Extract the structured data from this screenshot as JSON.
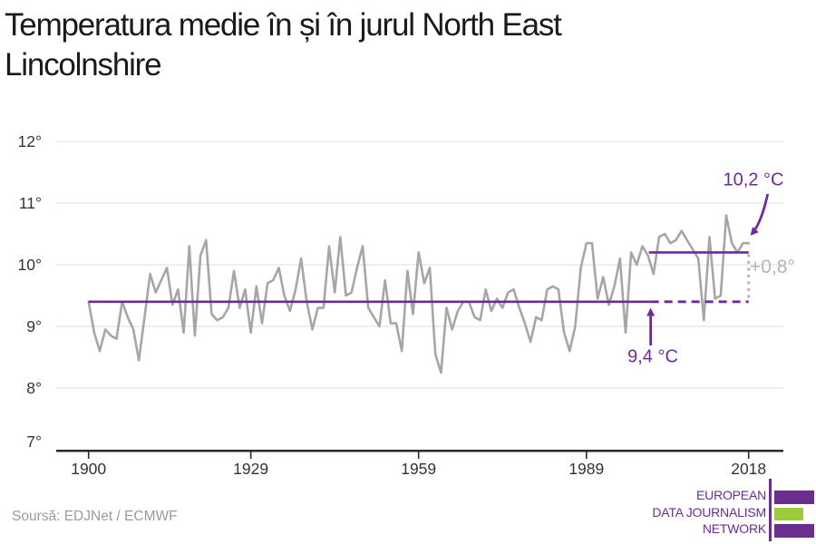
{
  "title": "Temperatura medie în și în jurul North East Lincolnshire",
  "source": "Soursă: EDJNet / ECMWF",
  "annotations": {
    "recent_avg_label": "10,2 °C",
    "past_avg_label": "9,4 °C",
    "delta_label": "+0,8°"
  },
  "logo": {
    "line1": "EUROPEAN",
    "line2": "DATA JOURNALISM",
    "line3": "NETWORK"
  },
  "colors": {
    "purple": "#6e2a9d",
    "logo_purple": "#6b2e8f",
    "logo_green": "#9dcb3c",
    "series_gray": "#a6a6a6",
    "grid": "#e3e3e3",
    "axis": "#2a2a2a",
    "tick_text": "#333333",
    "delta_gray": "#b4b4b4",
    "source_gray": "#9b9b9b",
    "title_text": "#1a1a1a"
  },
  "chart_data": {
    "type": "line",
    "title": "Temperatura medie în și în jurul North East Lincolnshire",
    "xlabel": "",
    "ylabel": "",
    "xlim": [
      1900,
      2018
    ],
    "ylim": [
      7,
      12
    ],
    "grid": "horizontal",
    "legend": "none",
    "x_ticks": [
      {
        "value": 1900,
        "label": "1900"
      },
      {
        "value": 1929,
        "label": "1929"
      },
      {
        "value": 1959,
        "label": "1959"
      },
      {
        "value": 1989,
        "label": "1989"
      },
      {
        "value": 2018,
        "label": "2018"
      }
    ],
    "y_ticks": [
      {
        "value": 12,
        "label": "12°"
      },
      {
        "value": 11,
        "label": "11°"
      },
      {
        "value": 10,
        "label": "10°"
      },
      {
        "value": 9,
        "label": "9°"
      },
      {
        "value": 8,
        "label": "8°"
      },
      {
        "value": 7,
        "label": "7°"
      }
    ],
    "baseline_1900_1999": 9.4,
    "average_2000_2018": 10.2,
    "difference": 0.8,
    "baseline_period": [
      1900,
      2000
    ],
    "recent_period": [
      2000,
      2018
    ],
    "years": [
      1900,
      1901,
      1902,
      1903,
      1904,
      1905,
      1906,
      1907,
      1908,
      1909,
      1910,
      1911,
      1912,
      1913,
      1914,
      1915,
      1916,
      1917,
      1918,
      1919,
      1920,
      1921,
      1922,
      1923,
      1924,
      1925,
      1926,
      1927,
      1928,
      1929,
      1930,
      1931,
      1932,
      1933,
      1934,
      1935,
      1936,
      1937,
      1938,
      1939,
      1940,
      1941,
      1942,
      1943,
      1944,
      1945,
      1946,
      1947,
      1948,
      1949,
      1950,
      1951,
      1952,
      1953,
      1954,
      1955,
      1956,
      1957,
      1958,
      1959,
      1960,
      1961,
      1962,
      1963,
      1964,
      1965,
      1966,
      1967,
      1968,
      1969,
      1970,
      1971,
      1972,
      1973,
      1974,
      1975,
      1976,
      1977,
      1978,
      1979,
      1980,
      1981,
      1982,
      1983,
      1984,
      1985,
      1986,
      1987,
      1988,
      1989,
      1990,
      1991,
      1992,
      1993,
      1994,
      1995,
      1996,
      1997,
      1998,
      1999,
      2000,
      2001,
      2002,
      2003,
      2004,
      2005,
      2006,
      2007,
      2008,
      2009,
      2010,
      2011,
      2012,
      2013,
      2014,
      2015,
      2016,
      2017,
      2018
    ],
    "values": [
      9.4,
      8.9,
      8.6,
      8.95,
      8.85,
      8.8,
      9.4,
      9.15,
      8.95,
      8.45,
      9.15,
      9.85,
      9.55,
      9.75,
      9.95,
      9.35,
      9.6,
      8.9,
      10.3,
      8.85,
      10.15,
      10.4,
      9.2,
      9.1,
      9.15,
      9.3,
      9.9,
      9.3,
      9.6,
      8.9,
      9.65,
      9.05,
      9.7,
      9.75,
      9.95,
      9.5,
      9.25,
      9.6,
      10.1,
      9.4,
      8.95,
      9.3,
      9.3,
      10.3,
      9.55,
      10.45,
      9.5,
      9.55,
      9.95,
      10.3,
      9.3,
      9.15,
      9.0,
      9.75,
      9.05,
      9.05,
      8.6,
      9.9,
      9.2,
      10.2,
      9.7,
      9.95,
      8.55,
      8.25,
      9.3,
      8.95,
      9.25,
      9.4,
      9.4,
      9.15,
      9.1,
      9.6,
      9.25,
      9.45,
      9.3,
      9.55,
      9.6,
      9.3,
      9.05,
      8.75,
      9.15,
      9.1,
      9.6,
      9.65,
      9.6,
      8.9,
      8.6,
      9.0,
      9.95,
      10.35,
      10.35,
      9.45,
      9.8,
      9.35,
      9.65,
      10.1,
      8.9,
      10.2,
      10.0,
      10.3,
      10.15,
      9.85,
      10.45,
      10.5,
      10.35,
      10.4,
      10.55,
      10.4,
      10.25,
      10.1,
      9.1,
      10.45,
      9.45,
      9.5,
      10.8,
      10.35,
      10.2,
      10.35,
      10.35
    ]
  }
}
